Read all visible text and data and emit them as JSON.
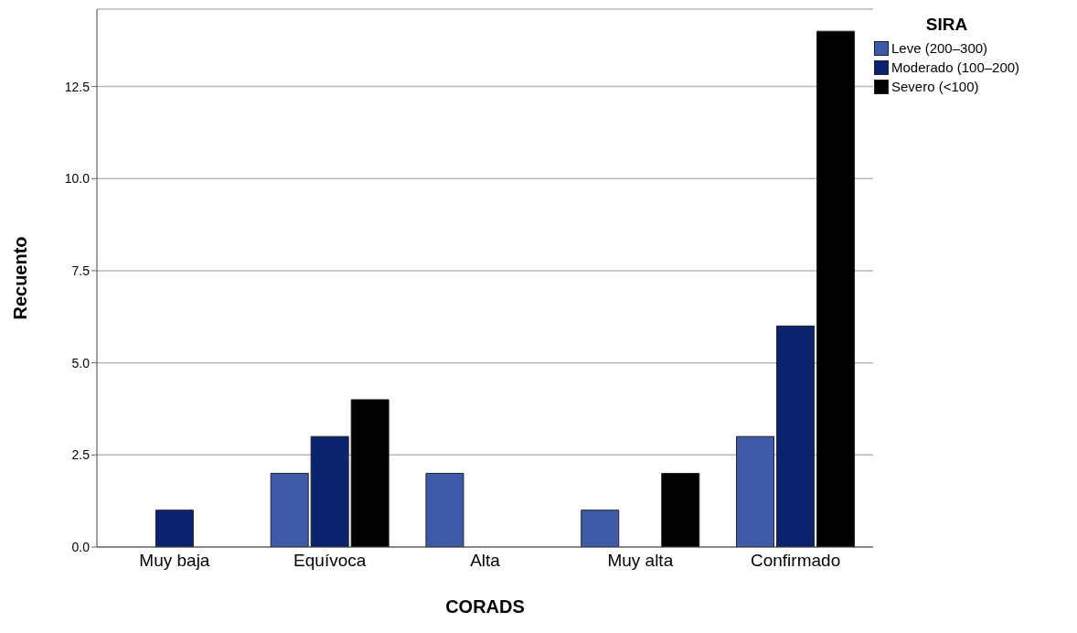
{
  "chart_data": {
    "type": "bar",
    "xlabel": "CORADS",
    "ylabel": "Recuento",
    "legend_title": "SIRA",
    "categories": [
      "Muy baja",
      "Equívoca",
      "Alta",
      "Muy alta",
      "Confirmado"
    ],
    "series": [
      {
        "name": "Leve (200–300)",
        "color": "#3f5aa8",
        "values": [
          null,
          2,
          2,
          1,
          3
        ]
      },
      {
        "name": "Moderado (100–200)",
        "color": "#0c2470",
        "values": [
          1,
          3,
          null,
          null,
          6
        ]
      },
      {
        "name": "Severo (<100)",
        "color": "#000000",
        "values": [
          null,
          4,
          null,
          2,
          14
        ]
      }
    ],
    "ylim": [
      0,
      14.6
    ],
    "yticks": [
      {
        "value": 0,
        "label": "0.0"
      },
      {
        "value": 2.5,
        "label": "2.5"
      },
      {
        "value": 5,
        "label": "5.0"
      },
      {
        "value": 7.5,
        "label": "7.5"
      },
      {
        "value": 10,
        "label": "10.0"
      },
      {
        "value": 12.5,
        "label": "12.5"
      }
    ],
    "grid": "y",
    "legend": "top right"
  }
}
